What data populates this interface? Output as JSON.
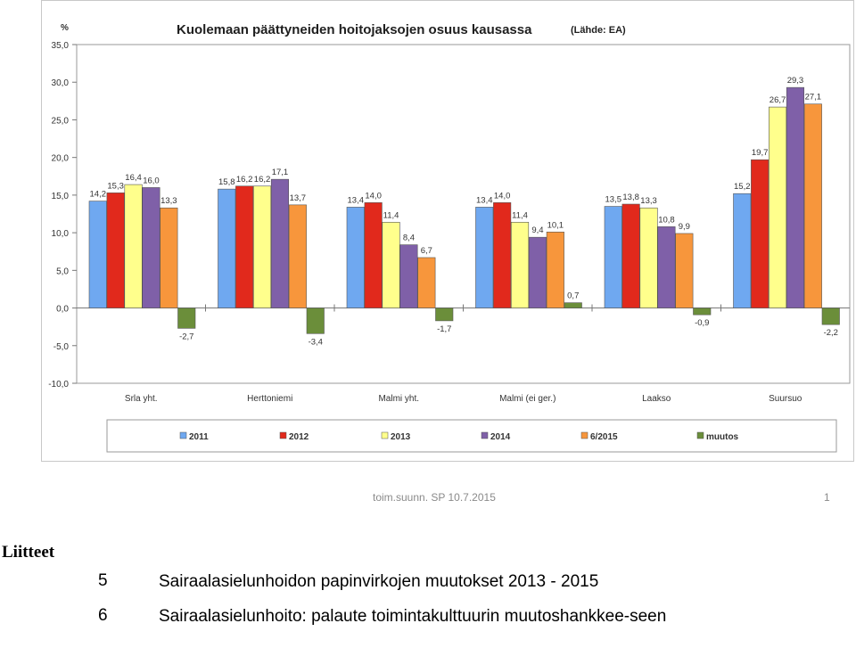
{
  "chart_data": {
    "type": "bar",
    "title": "Kuolemaan päättyneiden hoitojaksojen osuus kausassa",
    "source_note": "(Lähde: EA)",
    "ylabel": "%",
    "ylim": [
      -10,
      35
    ],
    "yticks": [
      "-10,0",
      "-5,0",
      "0,0",
      "5,0",
      "10,0",
      "15,0",
      "20,0",
      "25,0",
      "30,0",
      "35,0"
    ],
    "categories": [
      "Srla yht.",
      "Herttoniemi",
      "Malmi yht.",
      "Malmi (ei ger.)",
      "Laakso",
      "Suursuo"
    ],
    "legend_position": "bottom",
    "grid": false,
    "series": [
      {
        "name": "2011",
        "color": "#6fa8f0",
        "values": [
          14.2,
          15.8,
          13.4,
          13.4,
          13.5,
          15.2
        ],
        "labels": [
          "14,2",
          "15,8",
          "13,4",
          "13,4",
          "13,5",
          "15,2"
        ]
      },
      {
        "name": "2012",
        "color": "#e1291c",
        "values": [
          15.3,
          16.2,
          14.0,
          14.0,
          13.8,
          19.7
        ],
        "labels": [
          "15,3",
          "16,2",
          "14,0",
          "14,0",
          "13,8",
          "19,7"
        ]
      },
      {
        "name": "2013",
        "color": "#ffff8c",
        "values": [
          16.4,
          16.2,
          11.4,
          11.4,
          13.3,
          26.7
        ],
        "labels": [
          "16,4",
          "16,2",
          "11,4",
          "11,4",
          "13,3",
          "26,7"
        ]
      },
      {
        "name": "2014",
        "color": "#7f60a8",
        "values": [
          16.0,
          17.1,
          8.4,
          9.4,
          10.8,
          29.3
        ],
        "labels": [
          "16,0",
          "17,1",
          "8,4",
          "9,4",
          "10,8",
          "29,3"
        ]
      },
      {
        "name": "6/2015",
        "color": "#f7963c",
        "values": [
          13.3,
          13.7,
          6.7,
          10.1,
          9.9,
          27.1
        ],
        "labels": [
          "13,3",
          "13,7",
          "6,7",
          "10,1",
          "9,9",
          "27,1"
        ]
      },
      {
        "name": "muutos",
        "color": "#6b8e3a",
        "values": [
          -2.7,
          -3.4,
          -1.7,
          0.7,
          -0.9,
          -2.2
        ],
        "labels": [
          "-2,7",
          "-3,4",
          "-1,7",
          "0,7",
          "-0,9",
          "-2,2"
        ]
      }
    ]
  },
  "footer": {
    "text": "toim.suunn. SP 10.7.2015",
    "page": "1"
  },
  "attachments": {
    "heading": "Liitteet",
    "items": [
      {
        "number": "5",
        "text": "Sairaalasielunhoidon papinvirkojen muutokset 2013 - 2015"
      },
      {
        "number": "6",
        "text": "Sairaalasielunhoito: palaute toimintakulttuurin muutoshankkee-seen"
      }
    ]
  }
}
